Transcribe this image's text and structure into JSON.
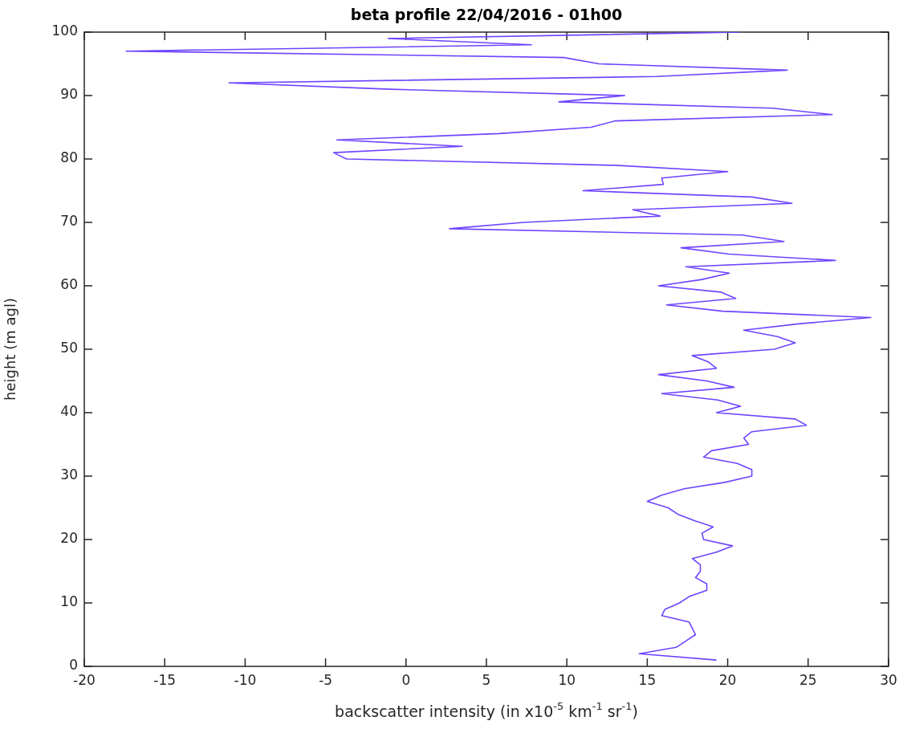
{
  "chart_data": {
    "type": "line",
    "title": "beta profile 22/04/2016 - 01h00",
    "xlabel": "backscatter intensity (in x10$^{-5}$ km$^{-1}$ sr$^{-1}$)",
    "ylabel": "height (m agl)",
    "xlim": [
      -20,
      30
    ],
    "xticks": [
      -20,
      -15,
      -10,
      -5,
      0,
      5,
      10,
      15,
      20,
      25,
      30
    ],
    "ylim": [
      0,
      100
    ],
    "yticks": [
      0,
      10,
      20,
      30,
      40,
      50,
      60,
      70,
      80,
      90,
      100
    ],
    "series": [
      {
        "color": "#6e44ff",
        "x": [
          19.3,
          14.5,
          16.8,
          17.4,
          18.0,
          17.8,
          17.6,
          15.9,
          16.1,
          17.0,
          17.6,
          18.7,
          18.7,
          18.0,
          18.3,
          18.3,
          17.8,
          19.3,
          20.3,
          18.5,
          18.4,
          19.1,
          17.9,
          16.9,
          16.3,
          15.0,
          15.9,
          17.3,
          19.8,
          21.5,
          21.5,
          20.6,
          18.5,
          19.0,
          21.3,
          21.0,
          21.5,
          24.9,
          24.2,
          19.3,
          20.8,
          19.4,
          15.9,
          20.4,
          18.7,
          15.7,
          19.3,
          18.8,
          17.8,
          22.9,
          24.2,
          23.1,
          21.0,
          24.4,
          28.9,
          19.7,
          16.2,
          20.5,
          19.6,
          15.7,
          18.4,
          20.1,
          17.4,
          26.7,
          20.1,
          17.1,
          23.5,
          20.9,
          2.7,
          7.3,
          15.8,
          14.1,
          24.0,
          21.5,
          11.0,
          16.0,
          15.9,
          20.0,
          13.0,
          -3.7,
          -4.5,
          3.5,
          -4.3,
          5.8,
          11.5,
          13.0,
          26.5,
          22.8,
          9.5,
          13.6,
          -1.0,
          -11.0,
          15.6,
          23.7,
          12.0,
          9.8,
          -17.4,
          7.8,
          -1.1,
          20.8
        ],
        "values": [
          1,
          2,
          3,
          4,
          5,
          6,
          7,
          8,
          9,
          10,
          11,
          12,
          13,
          14,
          15,
          16,
          17,
          18,
          19,
          20,
          21,
          22,
          23,
          24,
          25,
          26,
          27,
          28,
          29,
          30,
          31,
          32,
          33,
          34,
          35,
          36,
          37,
          38,
          39,
          40,
          41,
          42,
          43,
          44,
          45,
          46,
          47,
          48,
          49,
          50,
          51,
          52,
          53,
          54,
          55,
          56,
          57,
          58,
          59,
          60,
          61,
          62,
          63,
          64,
          65,
          66,
          67,
          68,
          69,
          70,
          71,
          72,
          73,
          74,
          75,
          76,
          77,
          78,
          79,
          80,
          81,
          82,
          83,
          84,
          85,
          86,
          87,
          88,
          89,
          90,
          91,
          92,
          93,
          94,
          95,
          96,
          97,
          98,
          99,
          100
        ]
      }
    ]
  }
}
